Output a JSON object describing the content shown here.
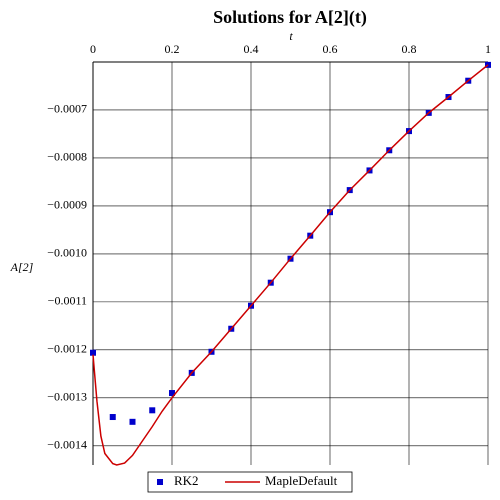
{
  "chart_data": {
    "type": "line",
    "title": "Solutions for A[2](t)",
    "x_label": "t",
    "y_label": "A[2]",
    "xlim": [
      0,
      1
    ],
    "ylim": [
      -0.00144,
      -0.0006
    ],
    "xticks": [
      0,
      0.2,
      0.4,
      0.6,
      0.8,
      1
    ],
    "yticks": [
      {
        "value": -0.0007,
        "label": "−0.0007"
      },
      {
        "value": -0.0008,
        "label": "−0.0008"
      },
      {
        "value": -0.0009,
        "label": "−0.0009"
      },
      {
        "value": -0.001,
        "label": "−0.0010"
      },
      {
        "value": -0.0011,
        "label": "−0.0011"
      },
      {
        "value": -0.0012,
        "label": "−0.0012"
      },
      {
        "value": -0.0013,
        "label": "−0.0013"
      },
      {
        "value": -0.0014,
        "label": "−0.0014"
      }
    ],
    "grid": true,
    "series": [
      {
        "name": "RK2",
        "color": "#0000cc",
        "style": "points",
        "x": [
          0,
          0.05,
          0.1,
          0.15,
          0.2,
          0.25,
          0.3,
          0.35,
          0.4,
          0.45,
          0.5,
          0.55,
          0.6,
          0.65,
          0.7,
          0.75,
          0.8,
          0.85,
          0.9,
          0.95,
          1
        ],
        "values": [
          -0.001206,
          -0.00134,
          -0.00135,
          -0.001326,
          -0.00129,
          -0.001248,
          -0.001204,
          -0.001156,
          -0.001108,
          -0.00106,
          -0.00101,
          -0.000962,
          -0.000913,
          -0.000867,
          -0.000826,
          -0.000784,
          -0.000744,
          -0.000706,
          -0.000673,
          -0.000639,
          -0.000606
        ]
      },
      {
        "name": "MapleDefault",
        "color": "#cc0000",
        "style": "line",
        "x": [
          0,
          0.01,
          0.02,
          0.03,
          0.05,
          0.06,
          0.08,
          0.1,
          0.125,
          0.15,
          0.175,
          0.2,
          0.25,
          0.3,
          0.35,
          0.4,
          0.45,
          0.5,
          0.55,
          0.6,
          0.65,
          0.7,
          0.75,
          0.8,
          0.85,
          0.9,
          0.95,
          1
        ],
        "values": [
          -0.00121,
          -0.001307,
          -0.00138,
          -0.001416,
          -0.001437,
          -0.00144,
          -0.001436,
          -0.00142,
          -0.00139,
          -0.00136,
          -0.001328,
          -0.0013,
          -0.001248,
          -0.001204,
          -0.001156,
          -0.001108,
          -0.00106,
          -0.00101,
          -0.000962,
          -0.000913,
          -0.000867,
          -0.000826,
          -0.000784,
          -0.000744,
          -0.000706,
          -0.000673,
          -0.000639,
          -0.000606
        ]
      }
    ]
  }
}
